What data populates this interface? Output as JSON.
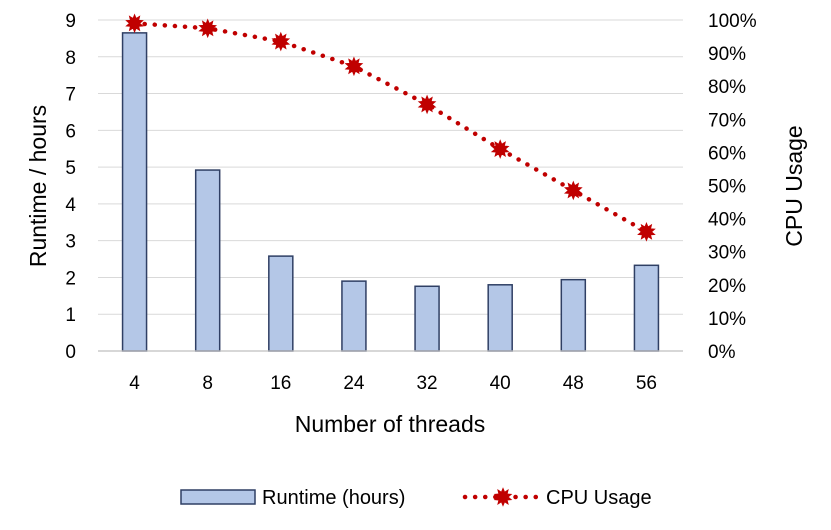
{
  "chart_data": {
    "type": "bar",
    "xlabel": "Number of threads",
    "ylabel": "Runtime / hours",
    "y2label": "CPU Usage",
    "categories": [
      "4",
      "8",
      "16",
      "24",
      "32",
      "40",
      "48",
      "56"
    ],
    "ylim": [
      0,
      9
    ],
    "y2lim": [
      0,
      100
    ],
    "yticks": [
      "0",
      "1",
      "2",
      "3",
      "4",
      "5",
      "6",
      "7",
      "8",
      "9"
    ],
    "y2ticks": [
      "0%",
      "10%",
      "20%",
      "30%",
      "40%",
      "50%",
      "60%",
      "70%",
      "80%",
      "90%",
      "100%"
    ],
    "grid": true,
    "legend_position": "bottom",
    "series": [
      {
        "name": "Runtime (hours)",
        "type": "bar",
        "axis": "left",
        "color": "#B4C7E7",
        "border_color": "#2F3F64",
        "values": [
          8.65,
          4.92,
          2.58,
          1.9,
          1.76,
          1.8,
          1.94,
          2.33
        ]
      },
      {
        "name": "CPU Usage",
        "type": "line",
        "axis": "right",
        "line_style": "dotted",
        "marker": "star",
        "color": "#C00000",
        "values": [
          99,
          97.5,
          93.5,
          86,
          74.5,
          61,
          48.5,
          36
        ]
      }
    ]
  }
}
